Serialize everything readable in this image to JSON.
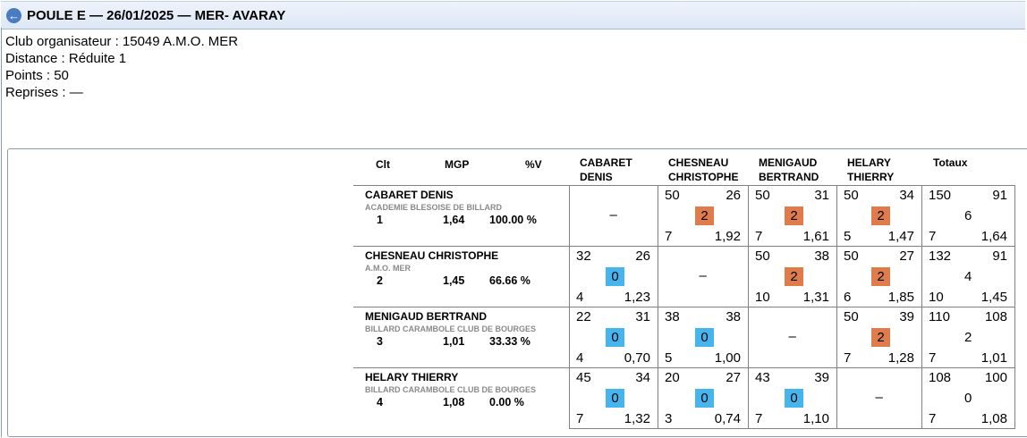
{
  "header": {
    "title": "POULE E — 26/01/2025 — MER- AVARAY",
    "back_icon": "back-arrow-icon"
  },
  "info": [
    "Club organisateur : 15049 A.M.O. MER",
    "Distance : Réduite 1",
    "Points : 50",
    "Reprises : —"
  ],
  "table": {
    "headers": {
      "clt": "Clt",
      "mgp": "MGP",
      "pv": "%V",
      "opponents": [
        [
          "CABARET",
          "DENIS"
        ],
        [
          "CHESNEAU",
          "CHRISTOPHE"
        ],
        [
          "MENIGAUD",
          "BERTRAND"
        ],
        [
          "HELARY",
          "THIERRY"
        ]
      ],
      "totals": "Totaux"
    },
    "empty": "–",
    "colors": {
      "win": "#e07c4c",
      "loss": "#46b5ee"
    },
    "rows": [
      {
        "name": "CABARET DENIS",
        "club": "ACADEMIE BLESOISE DE BILLARD",
        "clt": "1",
        "mgp": "1,64",
        "pv": "100.00 %",
        "cells": [
          null,
          {
            "pts": "50",
            "opp": "26",
            "mp": "2",
            "rep": "7",
            "moy": "1,92"
          },
          {
            "pts": "50",
            "opp": "31",
            "mp": "2",
            "rep": "7",
            "moy": "1,61"
          },
          {
            "pts": "50",
            "opp": "34",
            "mp": "2",
            "rep": "5",
            "moy": "1,47"
          }
        ],
        "total": {
          "pts": "150",
          "opp": "91",
          "mp": "6",
          "rep": "7",
          "moy": "1,64"
        }
      },
      {
        "name": "CHESNEAU CHRISTOPHE",
        "club": "A.M.O. MER",
        "clt": "2",
        "mgp": "1,45",
        "pv": "66.66 %",
        "cells": [
          {
            "pts": "32",
            "opp": "26",
            "mp": "0",
            "rep": "4",
            "moy": "1,23"
          },
          null,
          {
            "pts": "50",
            "opp": "38",
            "mp": "2",
            "rep": "10",
            "moy": "1,31"
          },
          {
            "pts": "50",
            "opp": "27",
            "mp": "2",
            "rep": "6",
            "moy": "1,85"
          }
        ],
        "total": {
          "pts": "132",
          "opp": "91",
          "mp": "4",
          "rep": "10",
          "moy": "1,45"
        }
      },
      {
        "name": "MENIGAUD BERTRAND",
        "club": "BILLARD CARAMBOLE CLUB DE BOURGES",
        "clt": "3",
        "mgp": "1,01",
        "pv": "33.33 %",
        "cells": [
          {
            "pts": "22",
            "opp": "31",
            "mp": "0",
            "rep": "4",
            "moy": "0,70"
          },
          {
            "pts": "38",
            "opp": "38",
            "mp": "0",
            "rep": "5",
            "moy": "1,00"
          },
          null,
          {
            "pts": "50",
            "opp": "39",
            "mp": "2",
            "rep": "7",
            "moy": "1,28"
          }
        ],
        "total": {
          "pts": "110",
          "opp": "108",
          "mp": "2",
          "rep": "7",
          "moy": "1,01"
        }
      },
      {
        "name": "HELARY THIERRY",
        "club": "BILLARD CARAMBOLE CLUB DE BOURGES",
        "clt": "4",
        "mgp": "1,08",
        "pv": "0.00 %",
        "cells": [
          {
            "pts": "45",
            "opp": "34",
            "mp": "0",
            "rep": "7",
            "moy": "1,32"
          },
          {
            "pts": "20",
            "opp": "27",
            "mp": "0",
            "rep": "3",
            "moy": "0,74"
          },
          {
            "pts": "43",
            "opp": "39",
            "mp": "0",
            "rep": "7",
            "moy": "1,10"
          },
          null
        ],
        "total": {
          "pts": "108",
          "opp": "100",
          "mp": "0",
          "rep": "7",
          "moy": "1,08"
        }
      }
    ]
  }
}
